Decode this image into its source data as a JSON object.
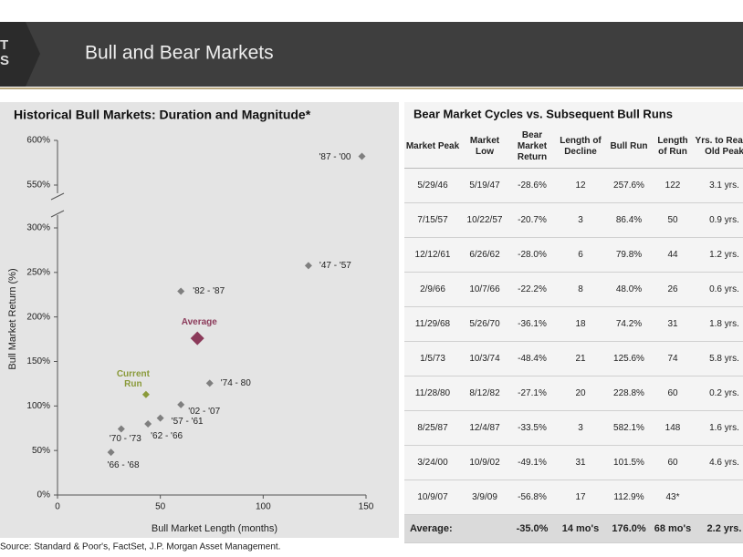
{
  "header": {
    "tab_lines": [
      "T",
      "S"
    ],
    "title": "Bull and Bear Markets"
  },
  "chart_data": {
    "type": "scatter",
    "title": "Historical Bull Markets: Duration and Magnitude*",
    "x_label": "Bull Market Length (months)",
    "y_label": "Bull Market Return (%)",
    "xlim": [
      0,
      150
    ],
    "xticks": [
      0,
      50,
      100,
      150
    ],
    "ylim": [
      0,
      600
    ],
    "y_break": [
      300,
      550
    ],
    "yticks": [
      {
        "value": 0,
        "label": "0%"
      },
      {
        "value": 50,
        "label": "50%"
      },
      {
        "value": 100,
        "label": "100%"
      },
      {
        "value": 150,
        "label": "150%"
      },
      {
        "value": 200,
        "label": "200%"
      },
      {
        "value": 250,
        "label": "250%"
      },
      {
        "value": 300,
        "label": "300%"
      },
      {
        "value": 550,
        "label": "550%"
      },
      {
        "value": 600,
        "label": "600%"
      }
    ],
    "points": [
      {
        "label": "'87 - '00",
        "x": 148,
        "y": 582.1,
        "color": "#7f7f7f",
        "size": 8
      },
      {
        "label": "'47 - '57",
        "x": 122,
        "y": 257.6,
        "color": "#7f7f7f",
        "size": 8
      },
      {
        "label": "'82 - '87",
        "x": 60,
        "y": 228.8,
        "color": "#7f7f7f",
        "size": 8
      },
      {
        "label": "Average",
        "x": 68,
        "y": 176.0,
        "color": "#8b3a5a",
        "size": 15
      },
      {
        "label": "'74 - 80",
        "x": 74,
        "y": 125.6,
        "color": "#7f7f7f",
        "size": 8
      },
      {
        "label": "Current Run",
        "x": 43,
        "y": 112.9,
        "color": "#8a9a3a",
        "size": 8
      },
      {
        "label": "'02 - '07",
        "x": 60,
        "y": 101.5,
        "color": "#7f7f7f",
        "size": 8
      },
      {
        "label": "'57 - '61",
        "x": 50,
        "y": 86.4,
        "color": "#7f7f7f",
        "size": 8
      },
      {
        "label": "'62 - '66",
        "x": 44,
        "y": 79.8,
        "color": "#7f7f7f",
        "size": 8
      },
      {
        "label": "'70 - '73",
        "x": 31,
        "y": 74.2,
        "color": "#7f7f7f",
        "size": 8
      },
      {
        "label": "'66 - '68",
        "x": 26,
        "y": 48.0,
        "color": "#7f7f7f",
        "size": 8
      }
    ]
  },
  "table": {
    "title": "Bear Market Cycles vs. Subsequent Bull Runs",
    "columns": [
      "Market Peak",
      "Market Low",
      "Bear Market Return",
      "Length of Decline",
      "Bull Run",
      "Length of Run",
      "Yrs. to Reach Old Peak"
    ],
    "rows": [
      [
        "5/29/46",
        "5/19/47",
        "-28.6%",
        "12",
        "257.6%",
        "122",
        "3.1 yrs."
      ],
      [
        "7/15/57",
        "10/22/57",
        "-20.7%",
        "3",
        "86.4%",
        "50",
        "0.9 yrs."
      ],
      [
        "12/12/61",
        "6/26/62",
        "-28.0%",
        "6",
        "79.8%",
        "44",
        "1.2 yrs."
      ],
      [
        "2/9/66",
        "10/7/66",
        "-22.2%",
        "8",
        "48.0%",
        "26",
        "0.6 yrs."
      ],
      [
        "11/29/68",
        "5/26/70",
        "-36.1%",
        "18",
        "74.2%",
        "31",
        "1.8 yrs."
      ],
      [
        "1/5/73",
        "10/3/74",
        "-48.4%",
        "21",
        "125.6%",
        "74",
        "5.8 yrs."
      ],
      [
        "11/28/80",
        "8/12/82",
        "-27.1%",
        "20",
        "228.8%",
        "60",
        "0.2 yrs."
      ],
      [
        "8/25/87",
        "12/4/87",
        "-33.5%",
        "3",
        "582.1%",
        "148",
        "1.6 yrs."
      ],
      [
        "3/24/00",
        "10/9/02",
        "-49.1%",
        "31",
        "101.5%",
        "60",
        "4.6 yrs."
      ],
      [
        "10/9/07",
        "3/9/09",
        "-56.8%",
        "17",
        "112.9%",
        "43*"
      ]
    ],
    "average": {
      "label": "Average:",
      "values": [
        "-35.0%",
        "14 mo's",
        "176.0%",
        "68 mo's",
        "2.2 yrs."
      ]
    }
  },
  "footer": {
    "source": "Source: Standard & Poor's, FactSet, J.P. Morgan Asset Management."
  }
}
